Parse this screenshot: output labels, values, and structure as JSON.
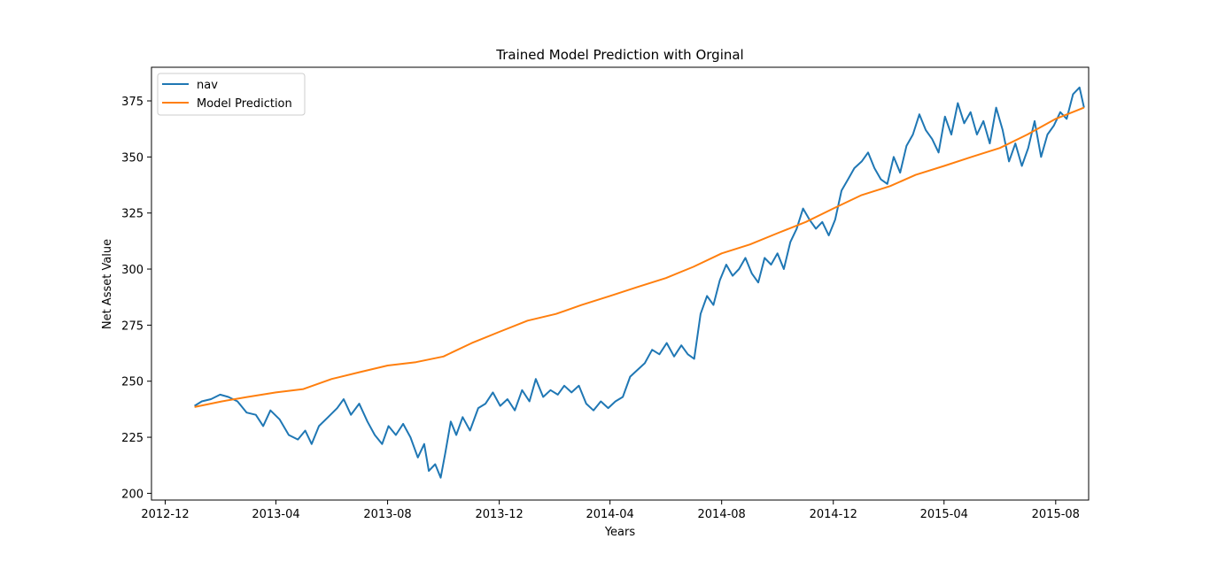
{
  "chart_data": {
    "type": "line",
    "title": "Trained Model Prediction with Orginal",
    "xlabel": "Years",
    "ylabel": "Net Asset Value",
    "xlim": [
      "2012-11-16",
      "2015-09-06"
    ],
    "ylim": [
      197,
      390
    ],
    "x_ticks": [
      "2012-12",
      "2013-04",
      "2013-08",
      "2013-12",
      "2014-04",
      "2014-08",
      "2014-12",
      "2015-04",
      "2015-08"
    ],
    "y_ticks": [
      200,
      225,
      250,
      275,
      300,
      325,
      350,
      375
    ],
    "grid": false,
    "legend_position": "top-left",
    "series": [
      {
        "name": "nav",
        "color": "#1f77b4",
        "points": [
          [
            "2013-01-02",
            239
          ],
          [
            "2013-01-10",
            241
          ],
          [
            "2013-01-20",
            242
          ],
          [
            "2013-01-30",
            244
          ],
          [
            "2013-02-08",
            243
          ],
          [
            "2013-02-18",
            241
          ],
          [
            "2013-02-28",
            236
          ],
          [
            "2013-03-10",
            235
          ],
          [
            "2013-03-18",
            230
          ],
          [
            "2013-03-26",
            237
          ],
          [
            "2013-04-05",
            233
          ],
          [
            "2013-04-15",
            226
          ],
          [
            "2013-04-25",
            224
          ],
          [
            "2013-05-03",
            228
          ],
          [
            "2013-05-10",
            222
          ],
          [
            "2013-05-18",
            230
          ],
          [
            "2013-05-28",
            234
          ],
          [
            "2013-06-07",
            238
          ],
          [
            "2013-06-14",
            242
          ],
          [
            "2013-06-22",
            235
          ],
          [
            "2013-07-01",
            240
          ],
          [
            "2013-07-10",
            232
          ],
          [
            "2013-07-18",
            226
          ],
          [
            "2013-07-26",
            222
          ],
          [
            "2013-08-02",
            230
          ],
          [
            "2013-08-10",
            226
          ],
          [
            "2013-08-18",
            231
          ],
          [
            "2013-08-26",
            225
          ],
          [
            "2013-09-03",
            216
          ],
          [
            "2013-09-10",
            222
          ],
          [
            "2013-09-15",
            210
          ],
          [
            "2013-09-22",
            213
          ],
          [
            "2013-09-28",
            207
          ],
          [
            "2013-10-03",
            218
          ],
          [
            "2013-10-09",
            232
          ],
          [
            "2013-10-15",
            226
          ],
          [
            "2013-10-22",
            234
          ],
          [
            "2013-10-30",
            228
          ],
          [
            "2013-11-08",
            238
          ],
          [
            "2013-11-16",
            240
          ],
          [
            "2013-11-24",
            245
          ],
          [
            "2013-12-02",
            239
          ],
          [
            "2013-12-10",
            242
          ],
          [
            "2013-12-18",
            237
          ],
          [
            "2013-12-26",
            246
          ],
          [
            "2014-01-03",
            241
          ],
          [
            "2014-01-10",
            251
          ],
          [
            "2014-01-18",
            243
          ],
          [
            "2014-01-26",
            246
          ],
          [
            "2014-02-03",
            244
          ],
          [
            "2014-02-10",
            248
          ],
          [
            "2014-02-18",
            245
          ],
          [
            "2014-02-26",
            248
          ],
          [
            "2014-03-06",
            240
          ],
          [
            "2014-03-14",
            237
          ],
          [
            "2014-03-22",
            241
          ],
          [
            "2014-03-30",
            238
          ],
          [
            "2014-04-07",
            241
          ],
          [
            "2014-04-15",
            243
          ],
          [
            "2014-04-23",
            252
          ],
          [
            "2014-05-01",
            255
          ],
          [
            "2014-05-09",
            258
          ],
          [
            "2014-05-17",
            264
          ],
          [
            "2014-05-25",
            262
          ],
          [
            "2014-06-02",
            267
          ],
          [
            "2014-06-10",
            261
          ],
          [
            "2014-06-18",
            266
          ],
          [
            "2014-06-25",
            262
          ],
          [
            "2014-07-02",
            260
          ],
          [
            "2014-07-09",
            280
          ],
          [
            "2014-07-16",
            288
          ],
          [
            "2014-07-23",
            284
          ],
          [
            "2014-07-30",
            295
          ],
          [
            "2014-08-06",
            302
          ],
          [
            "2014-08-13",
            297
          ],
          [
            "2014-08-20",
            300
          ],
          [
            "2014-08-27",
            305
          ],
          [
            "2014-09-03",
            298
          ],
          [
            "2014-09-10",
            294
          ],
          [
            "2014-09-17",
            305
          ],
          [
            "2014-09-24",
            302
          ],
          [
            "2014-10-01",
            307
          ],
          [
            "2014-10-08",
            300
          ],
          [
            "2014-10-15",
            312
          ],
          [
            "2014-10-22",
            318
          ],
          [
            "2014-10-29",
            327
          ],
          [
            "2014-11-05",
            322
          ],
          [
            "2014-11-12",
            318
          ],
          [
            "2014-11-19",
            321
          ],
          [
            "2014-11-26",
            315
          ],
          [
            "2014-12-03",
            322
          ],
          [
            "2014-12-10",
            335
          ],
          [
            "2014-12-17",
            340
          ],
          [
            "2014-12-24",
            345
          ],
          [
            "2015-01-01",
            348
          ],
          [
            "2015-01-08",
            352
          ],
          [
            "2015-01-15",
            345
          ],
          [
            "2015-01-22",
            340
          ],
          [
            "2015-01-29",
            338
          ],
          [
            "2015-02-05",
            350
          ],
          [
            "2015-02-12",
            343
          ],
          [
            "2015-02-19",
            355
          ],
          [
            "2015-02-26",
            360
          ],
          [
            "2015-03-05",
            369
          ],
          [
            "2015-03-12",
            362
          ],
          [
            "2015-03-19",
            358
          ],
          [
            "2015-03-26",
            352
          ],
          [
            "2015-04-02",
            368
          ],
          [
            "2015-04-09",
            360
          ],
          [
            "2015-04-16",
            374
          ],
          [
            "2015-04-23",
            365
          ],
          [
            "2015-04-30",
            370
          ],
          [
            "2015-05-07",
            360
          ],
          [
            "2015-05-14",
            366
          ],
          [
            "2015-05-21",
            356
          ],
          [
            "2015-05-28",
            372
          ],
          [
            "2015-06-04",
            362
          ],
          [
            "2015-06-11",
            348
          ],
          [
            "2015-06-18",
            356
          ],
          [
            "2015-06-25",
            346
          ],
          [
            "2015-07-02",
            354
          ],
          [
            "2015-07-09",
            366
          ],
          [
            "2015-07-16",
            350
          ],
          [
            "2015-07-23",
            360
          ],
          [
            "2015-07-30",
            364
          ],
          [
            "2015-08-06",
            370
          ],
          [
            "2015-08-13",
            367
          ],
          [
            "2015-08-20",
            378
          ],
          [
            "2015-08-27",
            381
          ],
          [
            "2015-09-01",
            372
          ]
        ]
      },
      {
        "name": "Model Prediction",
        "color": "#ff7f0e",
        "points": [
          [
            "2013-01-02",
            238.5
          ],
          [
            "2013-02-01",
            241
          ],
          [
            "2013-03-01",
            243
          ],
          [
            "2013-04-01",
            245
          ],
          [
            "2013-05-01",
            246.5
          ],
          [
            "2013-06-01",
            251
          ],
          [
            "2013-07-01",
            254
          ],
          [
            "2013-08-01",
            257
          ],
          [
            "2013-09-01",
            258.5
          ],
          [
            "2013-10-01",
            261
          ],
          [
            "2013-11-01",
            267
          ],
          [
            "2013-12-01",
            272
          ],
          [
            "2014-01-01",
            277
          ],
          [
            "2014-02-01",
            280
          ],
          [
            "2014-03-01",
            284
          ],
          [
            "2014-04-01",
            288
          ],
          [
            "2014-05-01",
            292
          ],
          [
            "2014-06-01",
            296
          ],
          [
            "2014-07-01",
            301
          ],
          [
            "2014-08-01",
            307
          ],
          [
            "2014-09-01",
            311
          ],
          [
            "2014-10-01",
            316
          ],
          [
            "2014-11-01",
            321
          ],
          [
            "2014-12-01",
            327
          ],
          [
            "2015-01-01",
            333
          ],
          [
            "2015-02-01",
            337
          ],
          [
            "2015-03-01",
            342
          ],
          [
            "2015-04-01",
            346
          ],
          [
            "2015-05-01",
            350
          ],
          [
            "2015-06-01",
            354
          ],
          [
            "2015-07-01",
            360
          ],
          [
            "2015-08-01",
            367
          ],
          [
            "2015-09-01",
            372
          ]
        ]
      }
    ]
  }
}
